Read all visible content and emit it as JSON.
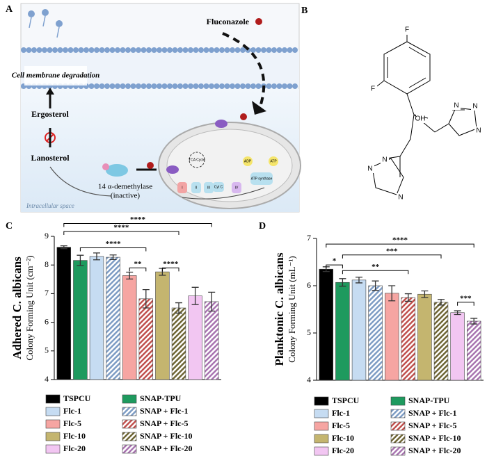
{
  "panels": {
    "A": {
      "label": "A",
      "fluconazole": "Fluconazole",
      "membrane": "Cell membrane degradation",
      "ergosterol": "Ergosterol",
      "lanosterol": "Lanosterol",
      "enzyme": "14 α-demethylase",
      "inactive": "(inactive)",
      "space": "Intracellular space",
      "tca": "TCA Cycle",
      "adp": "ADP",
      "atp": "ATP",
      "synthase": "ATP synthase",
      "cytc": "Cyt C",
      "complexes": [
        "I",
        "II",
        "III",
        "IV"
      ]
    },
    "B": {
      "label": "B",
      "atoms": [
        "F",
        "F",
        "OH",
        "N",
        "N",
        "N",
        "N",
        "N",
        "N"
      ]
    }
  },
  "chart_data": [
    {
      "type": "bar",
      "label": "C",
      "ylabel": "Adhered C. albicans",
      "ylabel2": "Colony Forming Unit (cm⁻²)",
      "categories": [
        "TSPCU",
        "SNAP-TPU",
        "Flc-1",
        "SNAP + Flc-1",
        "Flc-5",
        "SNAP + Flc-5",
        "Flc-10",
        "SNAP + Flc-10",
        "Flc-20",
        "SNAP + Flc-20"
      ],
      "values": [
        8.62,
        8.16,
        8.3,
        8.27,
        7.63,
        6.82,
        7.76,
        6.5,
        6.92,
        6.72
      ],
      "errors": [
        0.05,
        0.18,
        0.12,
        0.08,
        0.12,
        0.32,
        0.12,
        0.18,
        0.3,
        0.33
      ],
      "colors": [
        "#000000",
        "#1e9a5e",
        "#c6dcf2",
        "#7d9cc4",
        "#f6a5a2",
        "#c0504d",
        "#c4b56f",
        "#6e6534",
        "#f2c6f2",
        "#a874b0"
      ],
      "hatched": [
        false,
        false,
        false,
        true,
        false,
        true,
        false,
        true,
        false,
        true
      ],
      "ylim": [
        4,
        9
      ],
      "yticks": [
        4,
        5,
        6,
        7,
        8,
        9
      ],
      "brackets": [
        {
          "from": 0,
          "to": 9,
          "y": 9.45,
          "label": "****"
        },
        {
          "from": 0,
          "to": 7,
          "y": 9.17,
          "label": "****"
        },
        {
          "from": 1,
          "to": 5,
          "y": 8.6,
          "label": "****"
        },
        {
          "from": 4,
          "to": 5,
          "y": 7.9,
          "label": "**"
        },
        {
          "from": 6,
          "to": 7,
          "y": 7.9,
          "label": "****"
        }
      ]
    },
    {
      "type": "bar",
      "label": "D",
      "ylabel": "Planktonic C. albicans",
      "ylabel2": "Colony Forming Unit (mL⁻¹)",
      "categories": [
        "TSPCU",
        "SNAP-TPU",
        "Flc-1",
        "SNAP + Flc-1",
        "Flc-5",
        "SNAP + Flc-5",
        "Flc-10",
        "SNAP + Flc-10",
        "Flc-20",
        "SNAP + Flc-20"
      ],
      "values": [
        6.35,
        6.07,
        6.12,
        6.0,
        5.84,
        5.75,
        5.82,
        5.65,
        5.43,
        5.25
      ],
      "errors": [
        0.05,
        0.08,
        0.06,
        0.1,
        0.16,
        0.08,
        0.07,
        0.06,
        0.04,
        0.06
      ],
      "colors": [
        "#000000",
        "#1e9a5e",
        "#c6dcf2",
        "#7d9cc4",
        "#f6a5a2",
        "#c0504d",
        "#c4b56f",
        "#6e6534",
        "#f2c6f2",
        "#a874b0"
      ],
      "hatched": [
        false,
        false,
        false,
        true,
        false,
        true,
        false,
        true,
        false,
        true
      ],
      "ylim": [
        4,
        7
      ],
      "yticks": [
        4,
        5,
        6,
        7
      ],
      "brackets": [
        {
          "from": 0,
          "to": 9,
          "y": 6.88,
          "label": "****"
        },
        {
          "from": 1,
          "to": 7,
          "y": 6.65,
          "label": "***"
        },
        {
          "from": 0,
          "to": 1,
          "y": 6.44,
          "label": "*"
        },
        {
          "from": 1,
          "to": 5,
          "y": 6.32,
          "label": "**"
        },
        {
          "from": 8,
          "to": 9,
          "y": 5.65,
          "label": "***"
        }
      ]
    }
  ]
}
